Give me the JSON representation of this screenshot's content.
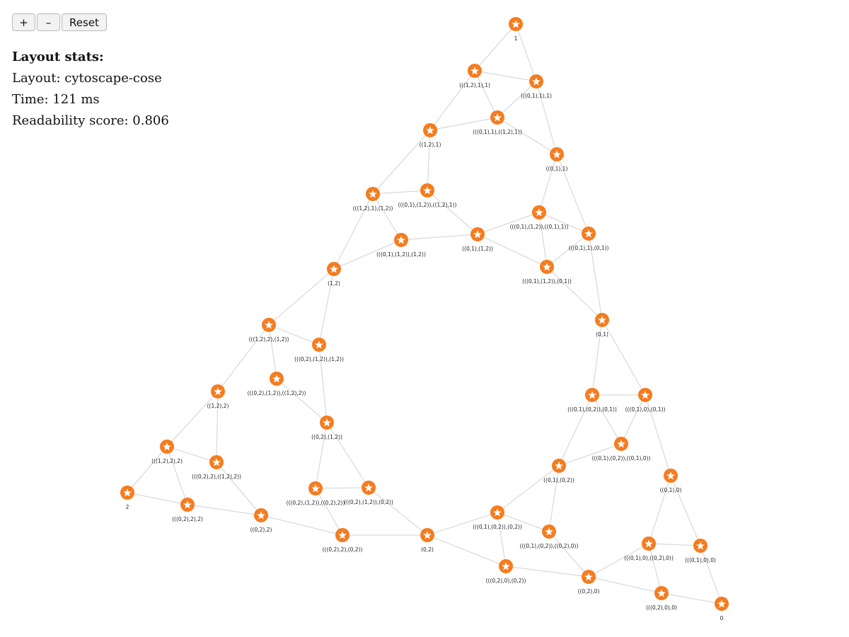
{
  "controls": {
    "zoom_in": "+",
    "zoom_out": "–",
    "reset": "Reset"
  },
  "stats": {
    "heading": "Layout stats:",
    "layout": "Layout: cytoscape-cose",
    "time": "Time: 121 ms",
    "readability": "Readability score: 0.806"
  },
  "graph": {
    "node_color": "#f57c1f",
    "icon": "star-icon",
    "nodes": [
      {
        "id": "n1",
        "label": "1"
      },
      {
        "id": "n2",
        "label": "(((1,2),1),1)"
      },
      {
        "id": "n3",
        "label": "(((0,1),1),1)"
      },
      {
        "id": "n4",
        "label": "(((0,1),1),((1,2),1))"
      },
      {
        "id": "n5",
        "label": "((1,2),1)"
      },
      {
        "id": "n6",
        "label": "((0,1),1)"
      },
      {
        "id": "n7",
        "label": "(((1,2),1),(1,2))"
      },
      {
        "id": "n8",
        "label": "(((0,1),(1,2)),((1,2),1))"
      },
      {
        "id": "n9",
        "label": "(((0,1),(1,2)),((0,1),1))"
      },
      {
        "id": "n10",
        "label": "((0,1),(1,2))"
      },
      {
        "id": "n11",
        "label": "(((0,1),1),(0,1))"
      },
      {
        "id": "n12",
        "label": "(((0,1),(1,2)),(1,2))"
      },
      {
        "id": "n13",
        "label": "(((0,1),(1,2)),(0,1))"
      },
      {
        "id": "n14",
        "label": "(1,2)"
      },
      {
        "id": "n15",
        "label": "(0,1)"
      },
      {
        "id": "n16",
        "label": "(((1,2),2),(1,2))"
      },
      {
        "id": "n17",
        "label": "(((0,2),(1,2)),(1,2))"
      },
      {
        "id": "n18",
        "label": "(((0,2),(1,2)),((1,2),2))"
      },
      {
        "id": "n19",
        "label": "((1,2),2)"
      },
      {
        "id": "n20",
        "label": "(((0,1),(0,2)),(0,1))"
      },
      {
        "id": "n21",
        "label": "(((0,1),0),(0,1))"
      },
      {
        "id": "n22",
        "label": "((0,2),(1,2))"
      },
      {
        "id": "n23",
        "label": "(((1,2),2),2)"
      },
      {
        "id": "n24",
        "label": "(((0,2),2),((1,2),2))"
      },
      {
        "id": "n25",
        "label": "(((0,1),(0,2)),((0,1),0))"
      },
      {
        "id": "n26",
        "label": "((0,1),(0,2))"
      },
      {
        "id": "n27",
        "label": "((0,1),0)"
      },
      {
        "id": "n28",
        "label": "2"
      },
      {
        "id": "n29",
        "label": "(((0,2),2),2)"
      },
      {
        "id": "n30",
        "label": "(((0,2),(1,2)),((0,2),2))"
      },
      {
        "id": "n31",
        "label": "(((0,2),(1,2)),(0,2))"
      },
      {
        "id": "n32",
        "label": "((0,2),2)"
      },
      {
        "id": "n33",
        "label": "(((0,2),2),(0,2))"
      },
      {
        "id": "n34",
        "label": "(0,2)"
      },
      {
        "id": "n35",
        "label": "(((0,1),(0,2)),(0,2))"
      },
      {
        "id": "n36",
        "label": "(((0,1),(0,2)),((0,2),0))"
      },
      {
        "id": "n37",
        "label": "(((0,1),0),((0,2),0))"
      },
      {
        "id": "n38",
        "label": "(((0,1),0),0)"
      },
      {
        "id": "n39",
        "label": "(((0,2),0),(0,2))"
      },
      {
        "id": "n40",
        "label": "((0,2),0)"
      },
      {
        "id": "n41",
        "label": "(((0,2),0),0)"
      },
      {
        "id": "n42",
        "label": "0"
      }
    ],
    "edges": [
      [
        "n1",
        "n2"
      ],
      [
        "n1",
        "n3"
      ],
      [
        "n2",
        "n3"
      ],
      [
        "n2",
        "n5"
      ],
      [
        "n3",
        "n6"
      ],
      [
        "n4",
        "n5"
      ],
      [
        "n4",
        "n6"
      ],
      [
        "n5",
        "n7"
      ],
      [
        "n5",
        "n8"
      ],
      [
        "n7",
        "n8"
      ],
      [
        "n7",
        "n12"
      ],
      [
        "n8",
        "n10"
      ],
      [
        "n7",
        "n14"
      ],
      [
        "n12",
        "n14"
      ],
      [
        "n12",
        "n10"
      ],
      [
        "n10",
        "n9"
      ],
      [
        "n10",
        "n13"
      ],
      [
        "n6",
        "n9"
      ],
      [
        "n6",
        "n11"
      ],
      [
        "n9",
        "n11"
      ],
      [
        "n9",
        "n13"
      ],
      [
        "n11",
        "n13"
      ],
      [
        "n11",
        "n15"
      ],
      [
        "n13",
        "n15"
      ],
      [
        "n14",
        "n16"
      ],
      [
        "n14",
        "n17"
      ],
      [
        "n16",
        "n17"
      ],
      [
        "n16",
        "n18"
      ],
      [
        "n16",
        "n19"
      ],
      [
        "n17",
        "n22"
      ],
      [
        "n18",
        "n22"
      ],
      [
        "n19",
        "n23"
      ],
      [
        "n19",
        "n24"
      ],
      [
        "n23",
        "n24"
      ],
      [
        "n23",
        "n28"
      ],
      [
        "n23",
        "n29"
      ],
      [
        "n28",
        "n29"
      ],
      [
        "n29",
        "n32"
      ],
      [
        "n24",
        "n32"
      ],
      [
        "n22",
        "n30"
      ],
      [
        "n22",
        "n31"
      ],
      [
        "n30",
        "n31"
      ],
      [
        "n30",
        "n33"
      ],
      [
        "n32",
        "n33"
      ],
      [
        "n31",
        "n34"
      ],
      [
        "n33",
        "n34"
      ],
      [
        "n15",
        "n20"
      ],
      [
        "n15",
        "n21"
      ],
      [
        "n20",
        "n21"
      ],
      [
        "n20",
        "n25"
      ],
      [
        "n21",
        "n25"
      ],
      [
        "n21",
        "n27"
      ],
      [
        "n25",
        "n26"
      ],
      [
        "n20",
        "n26"
      ],
      [
        "n26",
        "n35"
      ],
      [
        "n26",
        "n36"
      ],
      [
        "n35",
        "n36"
      ],
      [
        "n34",
        "n35"
      ],
      [
        "n34",
        "n39"
      ],
      [
        "n35",
        "n39"
      ],
      [
        "n36",
        "n40"
      ],
      [
        "n39",
        "n40"
      ],
      [
        "n27",
        "n37"
      ],
      [
        "n27",
        "n38"
      ],
      [
        "n37",
        "n38"
      ],
      [
        "n37",
        "n41"
      ],
      [
        "n38",
        "n42"
      ],
      [
        "n40",
        "n41"
      ],
      [
        "n41",
        "n42"
      ],
      [
        "n40",
        "n37"
      ],
      [
        "n4",
        "n2"
      ],
      [
        "n4",
        "n3"
      ]
    ]
  }
}
